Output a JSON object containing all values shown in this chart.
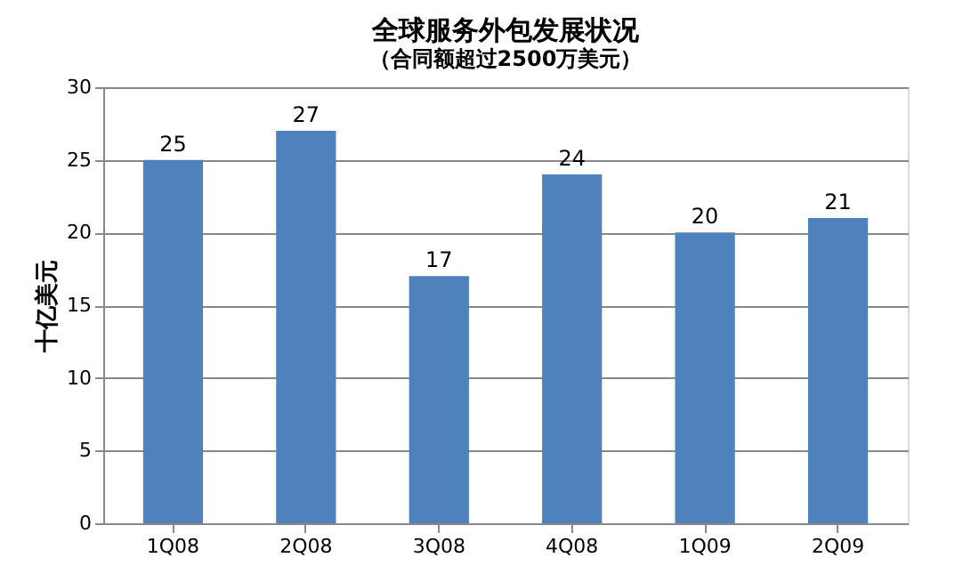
{
  "chart_data": {
    "type": "bar",
    "title": "全球服务外包发展状况",
    "subtitle": "（合同额超过2500万美元）",
    "ylabel": "十亿美元",
    "categories": [
      "1Q08",
      "2Q08",
      "3Q08",
      "4Q08",
      "1Q09",
      "2Q09"
    ],
    "values": [
      25,
      27,
      17,
      24,
      20,
      21
    ],
    "color": "#4f81bd",
    "ylim": [
      0,
      30
    ],
    "yticks": [
      0,
      5,
      10,
      15,
      20,
      25,
      30
    ],
    "grid": "y",
    "data_labels": true
  }
}
